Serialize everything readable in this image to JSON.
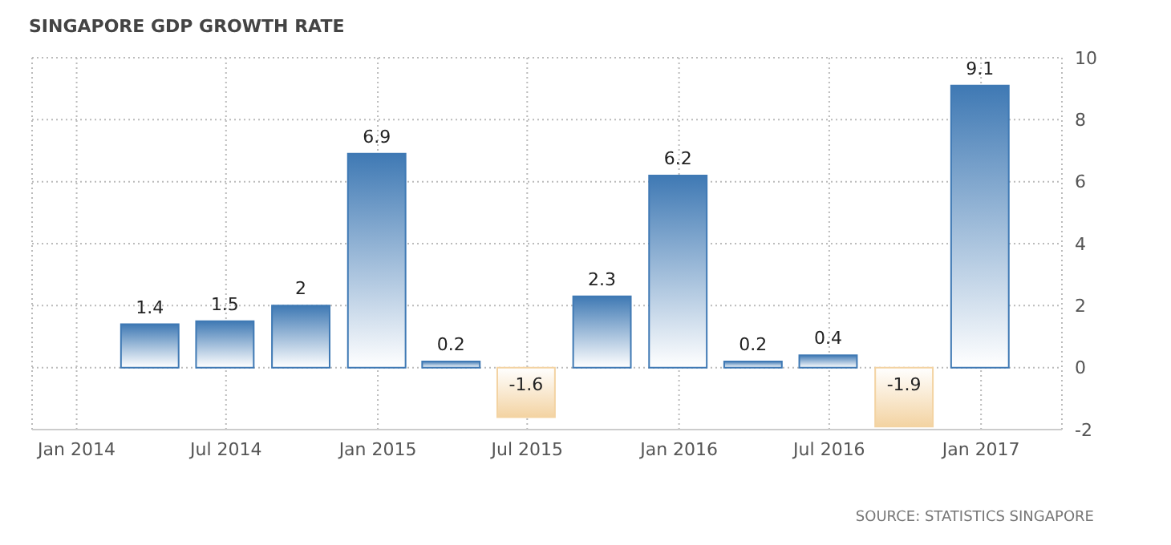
{
  "chart_data": {
    "type": "bar",
    "title": "SINGAPORE GDP GROWTH RATE",
    "x": [
      "2014-03-31",
      "2014-06-30",
      "2014-09-30",
      "2014-12-31",
      "2015-03-31",
      "2015-06-30",
      "2015-09-30",
      "2015-12-31",
      "2016-03-31",
      "2016-06-30",
      "2016-09-30",
      "2016-12-31"
    ],
    "values": [
      1.4,
      1.5,
      2,
      6.9,
      0.2,
      -1.6,
      2.3,
      6.2,
      0.2,
      0.4,
      -1.9,
      9.1
    ],
    "colors": [
      "#3f79b4",
      "#3f79b4",
      "#3f79b4",
      "#3f79b4",
      "#3f79b4",
      "#f3d3a2",
      "#3f79b4",
      "#3f79b4",
      "#3f79b4",
      "#3f79b4",
      "#f3d3a2",
      "#3f79b4"
    ],
    "data_labels": true,
    "xlim": [
      "2013-11-08",
      "2017-04-09"
    ],
    "xticks": [
      {
        "value": "2014-01-01",
        "label": "Jan 2014"
      },
      {
        "value": "2014-07-01",
        "label": "Jul 2014"
      },
      {
        "value": "2015-01-01",
        "label": "Jan 2015"
      },
      {
        "value": "2015-07-01",
        "label": "Jul 2015"
      },
      {
        "value": "2016-01-01",
        "label": "Jan 2016"
      },
      {
        "value": "2016-07-01",
        "label": "Jul 2016"
      },
      {
        "value": "2017-01-01",
        "label": "Jan 2017"
      }
    ],
    "ylim": [
      -2,
      10
    ],
    "yticks": [
      -2,
      0,
      2,
      4,
      6,
      8,
      10
    ],
    "grid": true,
    "annotations": [
      "SOURCE: STATISTICS SINGAPORE"
    ]
  }
}
